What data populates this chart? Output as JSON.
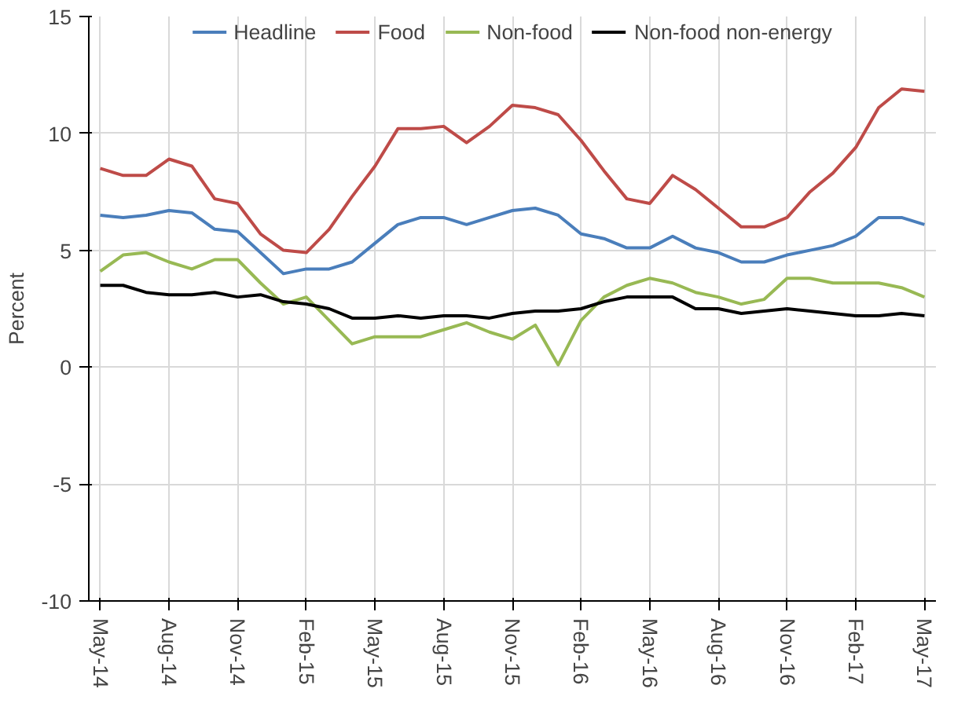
{
  "chart_data": {
    "type": "line",
    "ylabel": "Percent",
    "categories": [
      "May-14",
      null,
      null,
      "Aug-14",
      null,
      null,
      "Nov-14",
      null,
      null,
      "Feb-15",
      null,
      null,
      "May-15",
      null,
      null,
      "Aug-15",
      null,
      null,
      "Nov-15",
      null,
      null,
      "Feb-16",
      null,
      null,
      "May-16",
      null,
      null,
      "Aug-16",
      null,
      null,
      "Nov-16",
      null,
      null,
      "Feb-17",
      null,
      null,
      "May-17"
    ],
    "ylim": [
      -10,
      15
    ],
    "yticks": [
      -10,
      -5,
      0,
      5,
      10,
      15
    ],
    "grid": true,
    "legend": "top",
    "marker": "none",
    "line_style": "solid",
    "series": [
      {
        "name": "Headline",
        "color": "#4a7ebb",
        "values": [
          6.5,
          6.4,
          6.5,
          6.7,
          6.6,
          5.9,
          5.8,
          4.9,
          4.0,
          4.2,
          4.2,
          4.5,
          5.3,
          6.1,
          6.4,
          6.4,
          6.1,
          6.4,
          6.7,
          6.8,
          6.5,
          5.7,
          5.5,
          5.1,
          5.1,
          5.6,
          5.1,
          4.9,
          4.5,
          4.5,
          4.8,
          5.0,
          5.2,
          5.6,
          6.4,
          6.4,
          6.1
        ]
      },
      {
        "name": "Food",
        "color": "#be4b48",
        "values": [
          8.5,
          8.2,
          8.2,
          8.9,
          8.6,
          7.2,
          7.0,
          5.7,
          5.0,
          4.9,
          5.9,
          7.3,
          8.6,
          10.2,
          10.2,
          10.3,
          9.6,
          10.3,
          11.2,
          11.1,
          10.8,
          9.7,
          8.4,
          7.2,
          7.0,
          8.2,
          7.6,
          6.8,
          6.0,
          6.0,
          6.4,
          7.5,
          8.3,
          9.4,
          11.1,
          11.9,
          11.8
        ]
      },
      {
        "name": "Non-food",
        "color": "#98b954",
        "values": [
          4.1,
          4.8,
          4.9,
          4.5,
          4.2,
          4.6,
          4.6,
          3.6,
          2.7,
          3.0,
          2.0,
          1.0,
          1.3,
          1.3,
          1.3,
          1.6,
          1.9,
          1.5,
          1.2,
          1.8,
          0.1,
          2.0,
          3.0,
          3.5,
          3.8,
          3.6,
          3.2,
          3.0,
          2.7,
          2.9,
          3.8,
          3.8,
          3.6,
          3.6,
          3.6,
          3.4,
          3.0
        ]
      },
      {
        "name": "Non-food non-energy",
        "color": "#000000",
        "values": [
          3.5,
          3.5,
          3.2,
          3.1,
          3.1,
          3.2,
          3.0,
          3.1,
          2.8,
          2.7,
          2.5,
          2.1,
          2.1,
          2.2,
          2.1,
          2.2,
          2.2,
          2.1,
          2.3,
          2.4,
          2.4,
          2.5,
          2.8,
          3.0,
          3.0,
          3.0,
          2.5,
          2.5,
          2.3,
          2.4,
          2.5,
          2.4,
          2.3,
          2.2,
          2.2,
          2.3,
          2.2
        ]
      }
    ]
  }
}
